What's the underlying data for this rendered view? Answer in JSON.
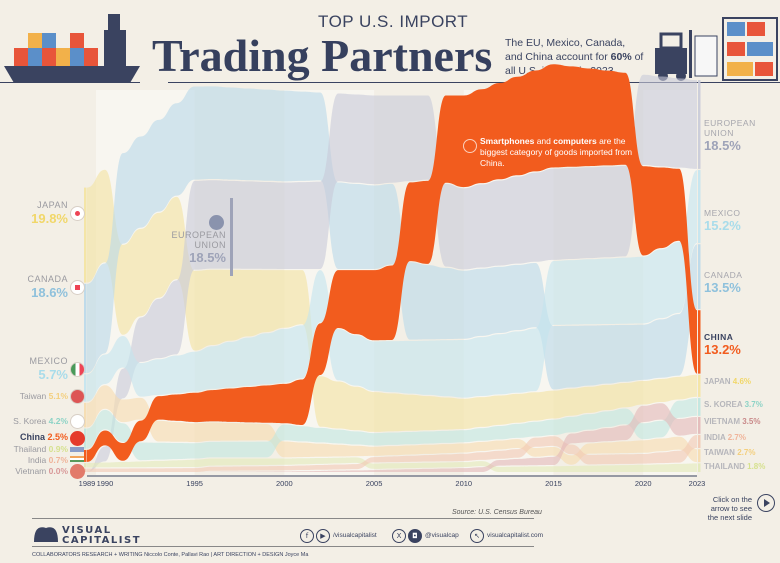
{
  "header": {
    "kicker": "TOP U.S. IMPORT",
    "title": "Trading Partners",
    "subtitle_pre": "The EU, Mexico, Canada, and China account for ",
    "subtitle_bold": "60%",
    "subtitle_post": " of all U.S. imports in 2023."
  },
  "annotation": {
    "bold1": "Smartphones",
    "text1": " and ",
    "bold2": "computers",
    "text2": " are the biggest category of goods imported from China.",
    "icon": "smartphone-icon"
  },
  "left_labels": {
    "japan": {
      "name": "JAPAN",
      "value": "19.8%"
    },
    "canada": {
      "name": "CANADA",
      "value": "18.6%"
    },
    "mexico": {
      "name": "MEXICO",
      "value": "5.7%"
    },
    "taiwan": {
      "name": "Taiwan",
      "value": "5.1%"
    },
    "skorea": {
      "name": "S. Korea",
      "value": "4.2%"
    },
    "china": {
      "name": "China",
      "value": "2.5%"
    },
    "thailand": {
      "name": "Thailand",
      "value": "0.9%"
    },
    "india": {
      "name": "India",
      "value": "0.7%"
    },
    "vietnam": {
      "name": "Vietnam",
      "value": "0.0%"
    }
  },
  "eu_mid_label": {
    "name1": "EUROPEAN",
    "name2": "UNION",
    "value": "18.5%"
  },
  "right_labels": {
    "eu": {
      "name1": "EUROPEAN",
      "name2": "UNION",
      "value": "18.5%"
    },
    "mexico": {
      "name": "MEXICO",
      "value": "15.2%"
    },
    "canada": {
      "name": "CANADA",
      "value": "13.5%"
    },
    "china": {
      "name": "CHINA",
      "value": "13.2%"
    },
    "japan": {
      "name": "JAPAN",
      "value": "4.6%"
    },
    "skorea": {
      "name": "S. KOREA",
      "value": "3.7%"
    },
    "vietnam": {
      "name": "VIETNAM",
      "value": "3.5%"
    },
    "india": {
      "name": "INDIA",
      "value": "2.7%"
    },
    "taiwan": {
      "name": "TAIWAN",
      "value": "2.7%"
    },
    "thailand": {
      "name": "THAILAND",
      "value": "1.8%"
    }
  },
  "chart_data": {
    "type": "area",
    "ylabel": "",
    "xlabel": "",
    "x_ticks": [
      "1989",
      "1990",
      "1995",
      "2000",
      "2005",
      "2010",
      "2015",
      "2020",
      "2023"
    ],
    "keyframe_years": [
      1989,
      1995,
      2000,
      2005,
      2010,
      2015,
      2020,
      2023
    ],
    "series": [
      {
        "name": "Japan",
        "color": "#f4e3a0",
        "values": [
          19.8,
          16.6,
          12.0,
          8.3,
          6.3,
          5.8,
          4.9,
          4.6
        ]
      },
      {
        "name": "Canada",
        "color": "#b9d8ea",
        "values": [
          18.6,
          19.4,
          18.9,
          17.4,
          14.2,
          13.2,
          11.5,
          13.5
        ]
      },
      {
        "name": "European Union",
        "color": "#c8cad8",
        "values": [
          0,
          18.5,
          18.0,
          18.5,
          16.9,
          19.0,
          18.8,
          18.5
        ]
      },
      {
        "name": "Mexico",
        "color": "#c3e4ef",
        "values": [
          5.7,
          8.3,
          11.2,
          10.3,
          12.0,
          13.3,
          13.9,
          15.2
        ]
      },
      {
        "name": "China",
        "color": "#f25c1e",
        "values": [
          2.5,
          6.1,
          8.2,
          14.6,
          19.1,
          21.5,
          18.6,
          13.2
        ]
      },
      {
        "name": "Taiwan",
        "color": "#f6dbae",
        "values": [
          5.1,
          3.9,
          3.3,
          1.9,
          1.9,
          1.8,
          2.6,
          2.7
        ]
      },
      {
        "name": "S. Korea",
        "color": "#bfe6df",
        "values": [
          4.2,
          3.2,
          3.3,
          2.6,
          2.5,
          3.2,
          3.3,
          3.7
        ]
      },
      {
        "name": "Thailand",
        "color": "#e2e9b8",
        "values": [
          0.9,
          1.5,
          1.3,
          1.1,
          1.0,
          1.2,
          1.5,
          1.8
        ]
      },
      {
        "name": "India",
        "color": "#f2c8b2",
        "values": [
          0.7,
          0.8,
          0.9,
          1.1,
          1.5,
          2.0,
          2.0,
          2.7
        ]
      },
      {
        "name": "Vietnam",
        "color": "#e2b7b7",
        "values": [
          0.0,
          0.0,
          0.1,
          0.4,
          0.8,
          1.7,
          3.4,
          3.5
        ]
      }
    ]
  },
  "footer": {
    "source": "Source: U.S. Census Bureau",
    "logo1": "VISUAL",
    "logo2": "CAPITALIST",
    "handle_fb_yt": "/visualcapitalist",
    "handle_x_ig": "@visualcap",
    "website": "visualcapitalist.com",
    "collaborators": "COLLABORATORS   RESEARCH + WRITING Niccolo Conte, Pallavi Rao  |  ART DIRECTION + DESIGN Joyce Ma",
    "next_text": "Click on the arrow to see the next slide"
  }
}
